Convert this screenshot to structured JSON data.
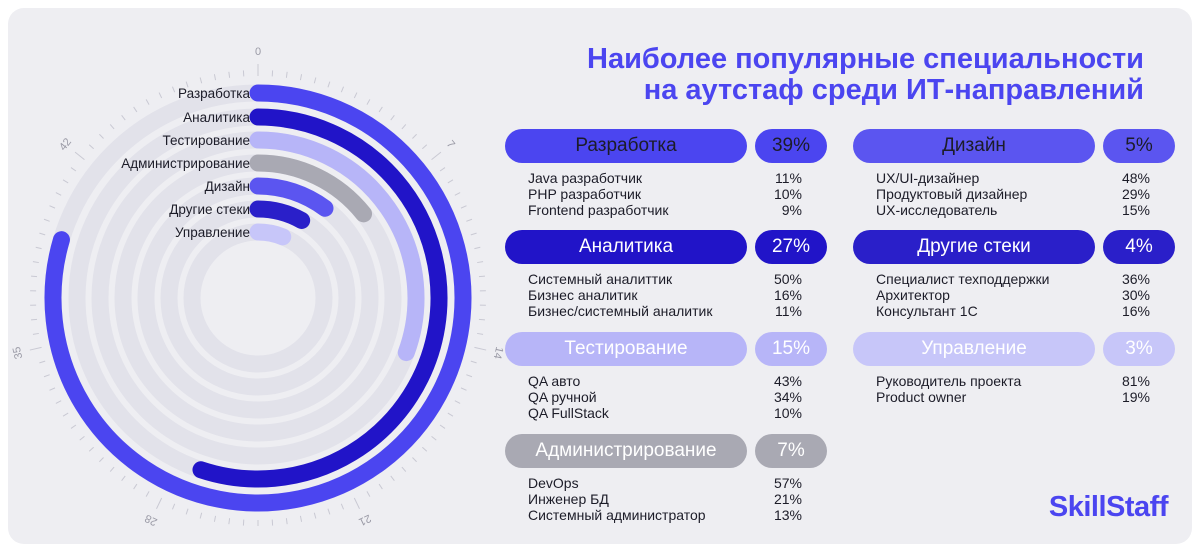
{
  "title_line1": "Наиболее популярные специальности",
  "title_line2": "на аутстаф среди ИТ-направлений",
  "logo": "SkillStaff",
  "chart_data": {
    "type": "radial-bar",
    "axis": {
      "min": 0,
      "max": 49,
      "ticks": [
        "0",
        "7",
        "14",
        "21",
        "28",
        "35",
        "42"
      ]
    },
    "series": [
      {
        "name": "Разработка",
        "value": 39,
        "pct": "39%",
        "color": "#4b45f0",
        "pill_text": "#1c1c28",
        "details": [
          {
            "label": "Java разработчик",
            "pct": "11%"
          },
          {
            "label": "PHP разработчик",
            "pct": "10%"
          },
          {
            "label": "Frontend разработчик",
            "pct": "9%"
          }
        ]
      },
      {
        "name": "Аналитика",
        "value": 27,
        "pct": "27%",
        "color": "#2114c8",
        "pill_text": "#ffffff",
        "details": [
          {
            "label": "Системный аналиттик",
            "pct": "50%"
          },
          {
            "label": "Бизнес аналитик",
            "pct": "16%"
          },
          {
            "label": "Бизнес/системный аналитик",
            "pct": "11%"
          }
        ]
      },
      {
        "name": "Тестирование",
        "value": 15,
        "pct": "15%",
        "color": "#b7b5f8",
        "pill_text": "#ffffff",
        "details": [
          {
            "label": "QA авто",
            "pct": "43%"
          },
          {
            "label": "QA ручной",
            "pct": "34%"
          },
          {
            "label": "QA FullStack",
            "pct": "10%"
          }
        ]
      },
      {
        "name": "Администрирование",
        "value": 7,
        "pct": "7%",
        "color": "#a9a9b3",
        "pill_text": "#ffffff",
        "details": [
          {
            "label": "DevOps",
            "pct": "57%"
          },
          {
            "label": "Инженер БД",
            "pct": "21%"
          },
          {
            "label": "Системный администратор",
            "pct": "13%"
          }
        ]
      },
      {
        "name": "Дизайн",
        "value": 5,
        "pct": "5%",
        "color": "#5b55f0",
        "pill_text": "#1c1c28",
        "details": [
          {
            "label": "UX/UI-дизайнер",
            "pct": "48%"
          },
          {
            "label": "Продуктовый дизайнер",
            "pct": "29%"
          },
          {
            "label": "UX-исследователь",
            "pct": "15%"
          }
        ]
      },
      {
        "name": "Другие стеки",
        "value": 4,
        "pct": "4%",
        "color": "#2a1fc9",
        "pill_text": "#ffffff",
        "details": [
          {
            "label": "Специалист техподдержки",
            "pct": "36%"
          },
          {
            "label": "Архитектор",
            "pct": "30%"
          },
          {
            "label": "Консультант 1С",
            "pct": "16%"
          }
        ]
      },
      {
        "name": "Управление",
        "value": 3,
        "pct": "3%",
        "color": "#c7c6f9",
        "pill_text": "#ffffff",
        "details": [
          {
            "label": "Руководитель проекта",
            "pct": "81%"
          },
          {
            "label": "Product owner",
            "pct": "19%"
          }
        ]
      }
    ]
  }
}
